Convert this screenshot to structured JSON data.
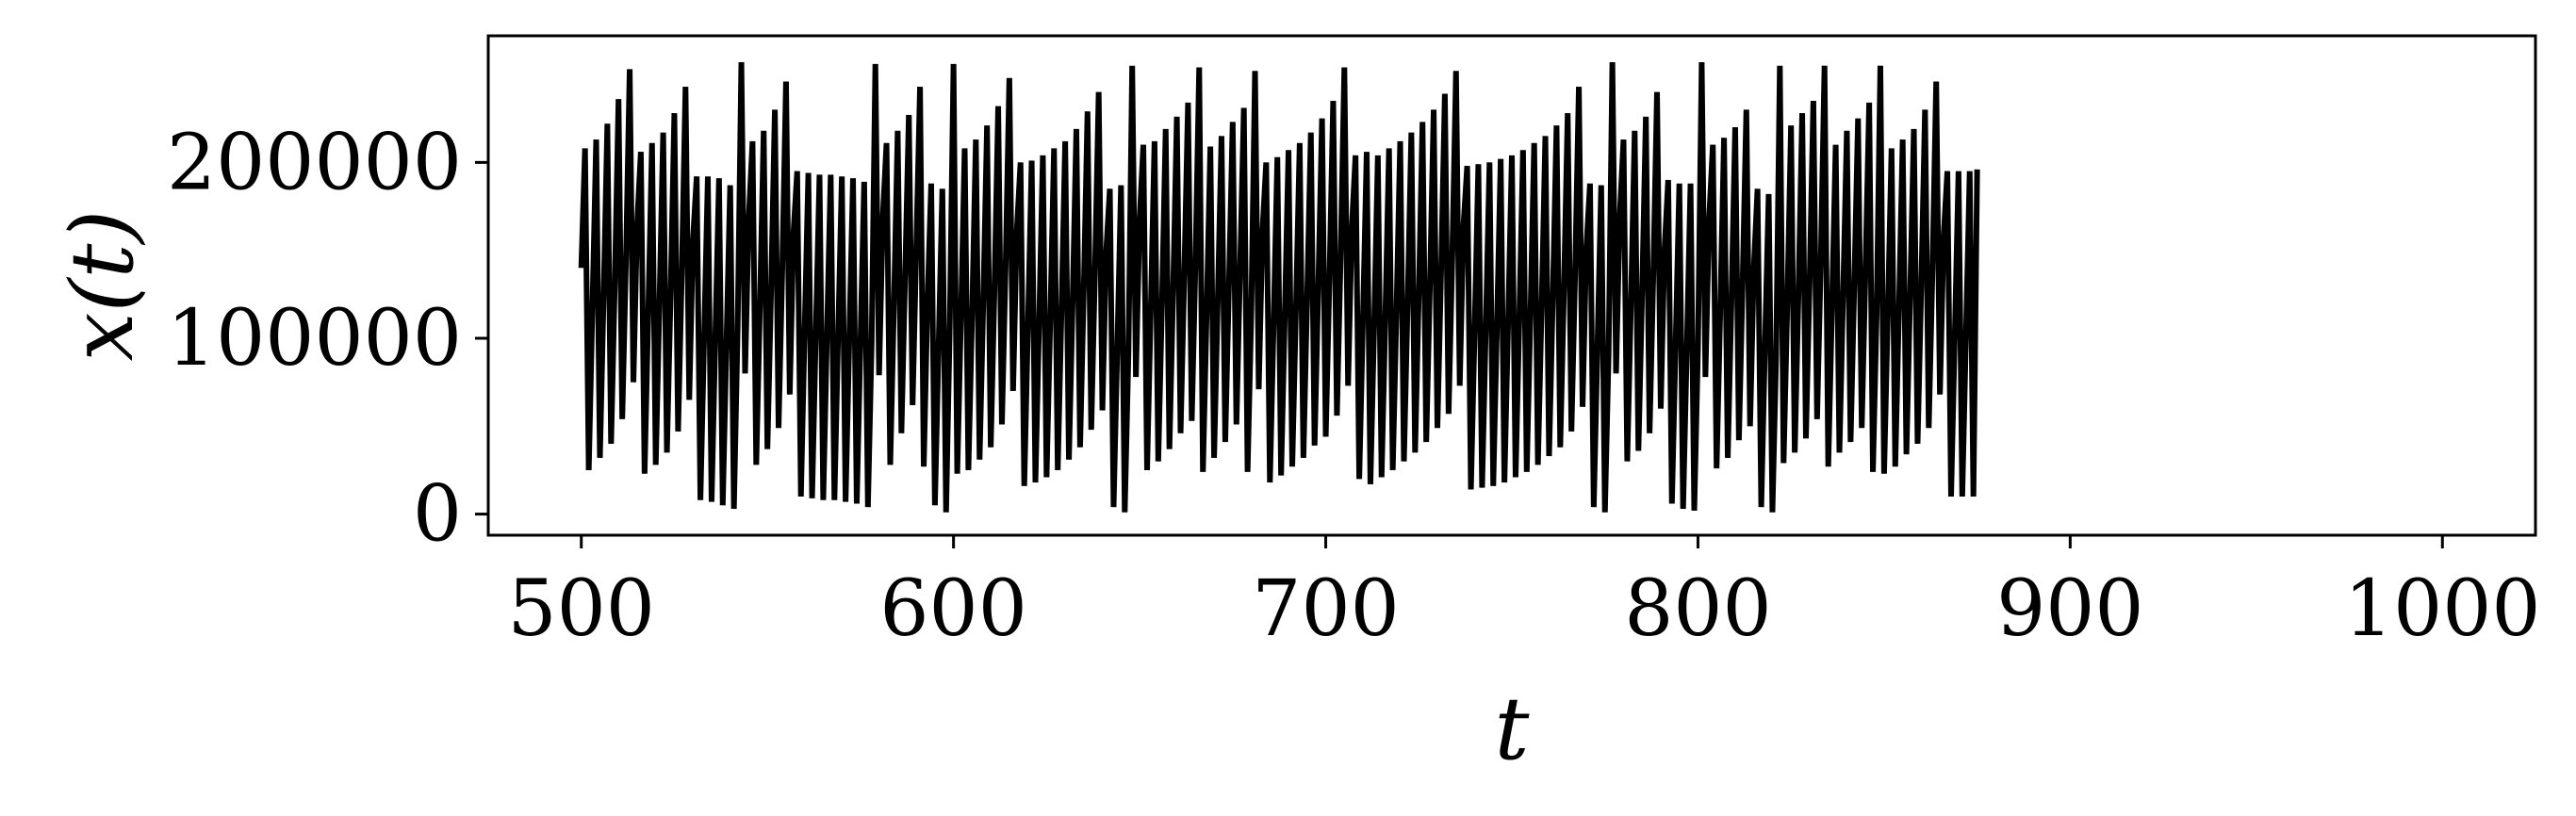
{
  "chart_data": {
    "type": "line",
    "title": "",
    "xlabel": "t",
    "ylabel": "x(t)",
    "xlim": [
      475,
      1025
    ],
    "ylim": [
      -12000,
      272000
    ],
    "xticks": [
      500,
      600,
      700,
      800,
      900,
      1000
    ],
    "xtick_labels": [
      "500",
      "600",
      "700",
      "800",
      "900",
      "1000"
    ],
    "yticks": [
      0,
      100000,
      200000
    ],
    "ytick_labels": [
      "0",
      "100000",
      "200000"
    ],
    "grid": false,
    "legend": "none",
    "line_color": "#000000",
    "series": [
      {
        "x_start": 500,
        "x_step": 1,
        "values": [
          140000,
          208000,
          25000,
          118000,
          213000,
          32000,
          124000,
          222000,
          40000,
          131000,
          236000,
          54000,
          144000,
          253000,
          75000,
          165000,
          206000,
          23000,
          115000,
          211000,
          28000,
          120000,
          217000,
          35000,
          126000,
          228000,
          47000,
          137000,
          243000,
          65000,
          156000,
          192000,
          8000,
          101000,
          192000,
          7000,
          100000,
          191000,
          5000,
          97000,
          187000,
          3000,
          105000,
          257000,
          80000,
          169000,
          212000,
          28000,
          119000,
          218000,
          37000,
          128000,
          230000,
          49000,
          140000,
          246000,
          68000,
          160000,
          195000,
          10000,
          104000,
          194000,
          9000,
          103000,
          193000,
          8000,
          102000,
          193000,
          8000,
          101000,
          192000,
          7000,
          100000,
          191000,
          6000,
          98000,
          189000,
          4000,
          97000,
          256000,
          79000,
          169000,
          211000,
          28000,
          119000,
          218000,
          46000,
          136000,
          227000,
          62000,
          152000,
          243000,
          27000,
          120000,
          188000,
          5000,
          96000,
          185000,
          1000,
          108000,
          256000,
          23000,
          112000,
          208000,
          25000,
          114000,
          213000,
          31000,
          121000,
          221000,
          38000,
          128000,
          232000,
          51000,
          141000,
          248000,
          70000,
          161000,
          200000,
          16000,
          107000,
          201000,
          18000,
          109000,
          204000,
          21000,
          111000,
          208000,
          25000,
          115000,
          212000,
          31000,
          121000,
          219000,
          38000,
          128000,
          229000,
          48000,
          138000,
          240000,
          59000,
          149000,
          185000,
          4000,
          94000,
          187000,
          1000,
          92000,
          255000,
          78000,
          168000,
          210000,
          25000,
          117000,
          212000,
          30000,
          120000,
          219000,
          37000,
          127000,
          226000,
          46000,
          136000,
          234000,
          53000,
          143000,
          254000,
          24000,
          114000,
          209000,
          32000,
          122000,
          215000,
          41000,
          131000,
          223000,
          51000,
          141000,
          231000,
          24000,
          115000,
          252000,
          71000,
          161000,
          200000,
          18000,
          109000,
          203000,
          22000,
          113000,
          207000,
          27000,
          117000,
          211000,
          32000,
          123000,
          217000,
          39000,
          129000,
          225000,
          44000,
          134000,
          235000,
          56000,
          146000,
          254000,
          73000,
          163000,
          204000,
          20000,
          111000,
          206000,
          17000,
          107000,
          204000,
          21000,
          111000,
          208000,
          25000,
          115000,
          212000,
          30000,
          120000,
          217000,
          35000,
          125000,
          223000,
          41000,
          131000,
          230000,
          49000,
          139000,
          239000,
          57000,
          147000,
          252000,
          73000,
          164000,
          198000,
          14000,
          105000,
          199000,
          15000,
          106000,
          200000,
          16000,
          107000,
          202000,
          18000,
          109000,
          204000,
          21000,
          111000,
          207000,
          24000,
          114000,
          211000,
          28000,
          118000,
          215000,
          33000,
          123000,
          221000,
          38000,
          128000,
          228000,
          47000,
          137000,
          243000,
          61000,
          151000,
          188000,
          4000,
          95000,
          187000,
          1000,
          92000,
          257000,
          80000,
          170000,
          213000,
          30000,
          120000,
          218000,
          36000,
          126000,
          226000,
          46000,
          136000,
          240000,
          60000,
          150000,
          190000,
          6000,
          97000,
          188000,
          3000,
          94000,
          188000,
          2000,
          94000,
          257000,
          78000,
          168000,
          210000,
          26000,
          117000,
          214000,
          32000,
          122000,
          220000,
          42000,
          132000,
          230000,
          50000,
          140000,
          185000,
          4000,
          96000,
          182000,
          1000,
          90000,
          255000,
          29000,
          119000,
          221000,
          35000,
          125000,
          228000,
          43000,
          133000,
          235000,
          54000,
          144000,
          255000,
          27000,
          117000,
          210000,
          35000,
          125000,
          218000,
          41000,
          131000,
          225000,
          49000,
          139000,
          234000,
          24000,
          114000,
          255000,
          23000,
          113000,
          208000,
          27000,
          117000,
          213000,
          34000,
          124000,
          219000,
          40000,
          130000,
          230000,
          49000,
          139000,
          246000,
          68000,
          158000,
          195000,
          10000,
          102000,
          195000,
          10000,
          102000,
          195000,
          10000,
          196000
        ]
      }
    ]
  }
}
